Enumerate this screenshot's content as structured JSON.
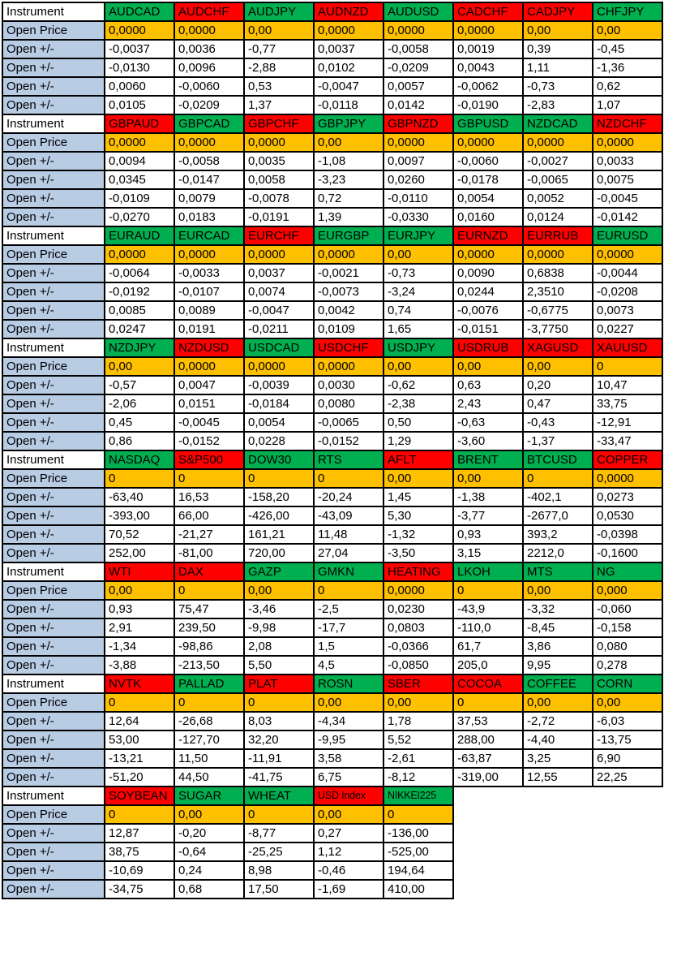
{
  "labels": {
    "instrument": "Instrument",
    "open_price": "Open Price",
    "open_change": "Open +/-"
  },
  "colors": {
    "green": "#00B050",
    "red": "#FF0000",
    "orange": "#FFC000",
    "label_blue": "#B8CCE4",
    "grid": "#000000"
  },
  "blocks": [
    {
      "headers": [
        {
          "text": "AUDCAD",
          "color": "green"
        },
        {
          "text": "AUDCHF",
          "color": "red"
        },
        {
          "text": "AUDJPY",
          "color": "green"
        },
        {
          "text": "AUDNZD",
          "color": "red"
        },
        {
          "text": "AUDUSD",
          "color": "green"
        },
        {
          "text": "CADCHF",
          "color": "red"
        },
        {
          "text": "CADJPY",
          "color": "red"
        },
        {
          "text": "CHFJPY",
          "color": "green"
        }
      ],
      "open_prices": [
        "0,0000",
        "0,0000",
        "0,00",
        "0,0000",
        "0,0000",
        "0,0000",
        "0,00",
        "0,00"
      ],
      "change_rows": [
        [
          "-0,0037",
          "0,0036",
          "-0,77",
          "0,0037",
          "-0,0058",
          "0,0019",
          "0,39",
          "-0,45"
        ],
        [
          "-0,0130",
          "0,0096",
          "-2,88",
          "0,0102",
          "-0,0209",
          "0,0043",
          "1,11",
          "-1,36"
        ],
        [
          "0,0060",
          "-0,0060",
          "0,53",
          "-0,0047",
          "0,0057",
          "-0,0062",
          "-0,73",
          "0,62"
        ],
        [
          "0,0105",
          "-0,0209",
          "1,37",
          "-0,0118",
          "0,0142",
          "-0,0190",
          "-2,83",
          "1,07"
        ]
      ]
    },
    {
      "headers": [
        {
          "text": "GBPAUD",
          "color": "red"
        },
        {
          "text": "GBPCAD",
          "color": "green"
        },
        {
          "text": "GBPCHF",
          "color": "red"
        },
        {
          "text": "GBPJPY",
          "color": "green"
        },
        {
          "text": "GBPNZD",
          "color": "red"
        },
        {
          "text": "GBPUSD",
          "color": "green"
        },
        {
          "text": "NZDCAD",
          "color": "green"
        },
        {
          "text": "NZDCHF",
          "color": "red"
        }
      ],
      "open_prices": [
        "0,0000",
        "0,0000",
        "0,0000",
        "0,00",
        "0,0000",
        "0,0000",
        "0,0000",
        "0,0000"
      ],
      "change_rows": [
        [
          "0,0094",
          "-0,0058",
          "0,0035",
          "-1,08",
          "0,0097",
          "-0,0060",
          "-0,0027",
          "0,0033"
        ],
        [
          "0,0345",
          "-0,0147",
          "0,0058",
          "-3,23",
          "0,0260",
          "-0,0178",
          "-0,0065",
          "0,0075"
        ],
        [
          "-0,0109",
          "0,0079",
          "-0,0078",
          "0,72",
          "-0,0110",
          "0,0054",
          "0,0052",
          "-0,0045"
        ],
        [
          "-0,0270",
          "0,0183",
          "-0,0191",
          "1,39",
          "-0,0330",
          "0,0160",
          "0,0124",
          "-0,0142"
        ]
      ]
    },
    {
      "headers": [
        {
          "text": "EURAUD",
          "color": "green"
        },
        {
          "text": "EURCAD",
          "color": "green"
        },
        {
          "text": "EURCHF",
          "color": "red"
        },
        {
          "text": "EURGBP",
          "color": "green"
        },
        {
          "text": "EURJPY",
          "color": "green"
        },
        {
          "text": "EURNZD",
          "color": "red"
        },
        {
          "text": "EURRUB",
          "color": "red"
        },
        {
          "text": "EURUSD",
          "color": "green"
        }
      ],
      "open_prices": [
        "0,0000",
        "0,0000",
        "0,0000",
        "0,0000",
        "0,00",
        "0,0000",
        "0,0000",
        "0,0000"
      ],
      "change_rows": [
        [
          "-0,0064",
          "-0,0033",
          "0,0037",
          "-0,0021",
          "-0,73",
          "0,0090",
          "0,6838",
          "-0,0044"
        ],
        [
          "-0,0192",
          "-0,0107",
          "0,0074",
          "-0,0073",
          "-3,24",
          "0,0244",
          "2,3510",
          "-0,0208"
        ],
        [
          "0,0085",
          "0,0089",
          "-0,0047",
          "0,0042",
          "0,74",
          "-0,0076",
          "-0,6775",
          "0,0073"
        ],
        [
          "0,0247",
          "0,0191",
          "-0,0211",
          "0,0109",
          "1,65",
          "-0,0151",
          "-3,7750",
          "0,0227"
        ]
      ]
    },
    {
      "headers": [
        {
          "text": "NZDJPY",
          "color": "green"
        },
        {
          "text": "NZDUSD",
          "color": "red"
        },
        {
          "text": "USDCAD",
          "color": "green"
        },
        {
          "text": "USDCHF",
          "color": "red"
        },
        {
          "text": "USDJPY",
          "color": "green"
        },
        {
          "text": "USDRUB",
          "color": "red"
        },
        {
          "text": "XAGUSD",
          "color": "red"
        },
        {
          "text": "XAUUSD",
          "color": "red"
        }
      ],
      "open_prices": [
        "0,00",
        "0,0000",
        "0,0000",
        "0,0000",
        "0,00",
        "0,00",
        "0,00",
        "0"
      ],
      "change_rows": [
        [
          "-0,57",
          "0,0047",
          "-0,0039",
          "0,0030",
          "-0,62",
          "0,63",
          "0,20",
          "10,47"
        ],
        [
          "-2,06",
          "0,0151",
          "-0,0184",
          "0,0080",
          "-2,38",
          "2,43",
          "0,47",
          "33,75"
        ],
        [
          "0,45",
          "-0,0045",
          "0,0054",
          "-0,0065",
          "0,50",
          "-0,63",
          "-0,43",
          "-12,91"
        ],
        [
          "0,86",
          "-0,0152",
          "0,0228",
          "-0,0152",
          "1,29",
          "-3,60",
          "-1,37",
          "-33,47"
        ]
      ]
    },
    {
      "headers": [
        {
          "text": "NASDAQ",
          "color": "green"
        },
        {
          "text": "S&P500",
          "color": "red"
        },
        {
          "text": "DOW30",
          "color": "green"
        },
        {
          "text": "RTS",
          "color": "green"
        },
        {
          "text": "AFLT",
          "color": "red"
        },
        {
          "text": "BRENT",
          "color": "green"
        },
        {
          "text": "BTCUSD",
          "color": "green"
        },
        {
          "text": "COPPER",
          "color": "red"
        }
      ],
      "open_prices": [
        "0",
        "0",
        "0",
        "0",
        "0,00",
        "0,00",
        "0",
        "0,0000"
      ],
      "change_rows": [
        [
          "-63,40",
          "16,53",
          "-158,20",
          "-20,24",
          "1,45",
          "-1,38",
          "-402,1",
          "0,0273"
        ],
        [
          "-393,00",
          "66,00",
          "-426,00",
          "-43,09",
          "5,30",
          "-3,77",
          "-2677,0",
          "0,0530"
        ],
        [
          "70,52",
          "-21,27",
          "161,21",
          "11,48",
          "-1,32",
          "0,93",
          "393,2",
          "-0,0398"
        ],
        [
          "252,00",
          "-81,00",
          "720,00",
          "27,04",
          "-3,50",
          "3,15",
          "2212,0",
          "-0,1600"
        ]
      ]
    },
    {
      "headers": [
        {
          "text": "WTI",
          "color": "red"
        },
        {
          "text": "DAX",
          "color": "red"
        },
        {
          "text": "GAZP",
          "color": "green"
        },
        {
          "text": "GMKN",
          "color": "green"
        },
        {
          "text": "HEATING",
          "color": "red"
        },
        {
          "text": "LKOH",
          "color": "green"
        },
        {
          "text": "MTS",
          "color": "green"
        },
        {
          "text": "NG",
          "color": "green"
        }
      ],
      "open_prices": [
        "0,00",
        "0",
        "0,00",
        "0",
        "0,0000",
        "0",
        "0,00",
        "0,000"
      ],
      "change_rows": [
        [
          "0,93",
          "75,47",
          "-3,46",
          "-2,5",
          "0,0230",
          "-43,9",
          "-3,32",
          "-0,060"
        ],
        [
          "2,91",
          "239,50",
          "-9,98",
          "-17,7",
          "0,0803",
          "-110,0",
          "-8,45",
          "-0,158"
        ],
        [
          "-1,34",
          "-98,86",
          "2,08",
          "1,5",
          "-0,0366",
          "61,7",
          "3,86",
          "0,080"
        ],
        [
          "-3,88",
          "-213,50",
          "5,50",
          "4,5",
          "-0,0850",
          "205,0",
          "9,95",
          "0,278"
        ]
      ]
    },
    {
      "headers": [
        {
          "text": "NVTK",
          "color": "red"
        },
        {
          "text": "PALLAD",
          "color": "green"
        },
        {
          "text": "PLAT",
          "color": "red"
        },
        {
          "text": "ROSN",
          "color": "green"
        },
        {
          "text": "SBER",
          "color": "red"
        },
        {
          "text": "COCOA",
          "color": "red"
        },
        {
          "text": "COFFEE",
          "color": "green"
        },
        {
          "text": "CORN",
          "color": "green"
        }
      ],
      "open_prices": [
        "0",
        "0",
        "0",
        "0,00",
        "0,00",
        "0",
        "0,00",
        "0,00"
      ],
      "change_rows": [
        [
          "12,64",
          "-26,68",
          "8,03",
          "-4,34",
          "1,78",
          "37,53",
          "-2,72",
          "-6,03"
        ],
        [
          "53,00",
          "-127,70",
          "32,20",
          "-9,95",
          "5,52",
          "288,00",
          "-4,40",
          "-13,75"
        ],
        [
          "-13,21",
          "11,50",
          "-11,91",
          "3,58",
          "-2,61",
          "-63,87",
          "3,25",
          "6,90"
        ],
        [
          "-51,20",
          "44,50",
          "-41,75",
          "6,75",
          "-8,12",
          "-319,00",
          "12,55",
          "22,25"
        ]
      ]
    },
    {
      "headers": [
        {
          "text": "SOYBEAN",
          "color": "red"
        },
        {
          "text": "SUGAR",
          "color": "green"
        },
        {
          "text": "WHEAT",
          "color": "green"
        },
        {
          "text": "USD Index",
          "color": "red"
        },
        {
          "text": "NIKKEI225",
          "color": "green"
        }
      ],
      "open_prices": [
        "0",
        "0,00",
        "0",
        "0,00",
        "0"
      ],
      "change_rows": [
        [
          "12,87",
          "-0,20",
          "-8,77",
          "0,27",
          "-136,00"
        ],
        [
          "38,75",
          "-0,64",
          "-25,25",
          "1,12",
          "-525,00"
        ],
        [
          "-10,69",
          "0,24",
          "8,98",
          "-0,46",
          "194,64"
        ],
        [
          "-34,75",
          "0,68",
          "17,50",
          "-1,69",
          "410,00"
        ]
      ]
    }
  ]
}
